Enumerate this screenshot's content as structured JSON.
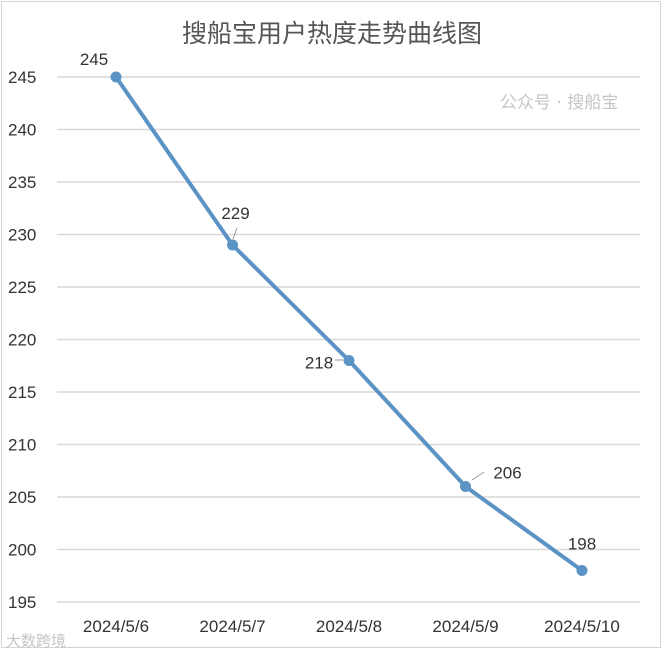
{
  "chart_data": {
    "type": "line",
    "title": "搜船宝用户热度走势曲线图",
    "categories": [
      "2024/5/6",
      "2024/5/7",
      "2024/5/8",
      "2024/5/9",
      "2024/5/10"
    ],
    "series": [
      {
        "values": [
          245,
          229,
          218,
          206,
          198
        ],
        "color": "#5b93c4"
      }
    ],
    "data_labels": [
      "245",
      "229",
      "218",
      "206",
      "198"
    ],
    "ylim": [
      195,
      245
    ],
    "yticks": [
      "195",
      "200",
      "205",
      "210",
      "215",
      "220",
      "225",
      "230",
      "235",
      "240",
      "245"
    ],
    "grid": true,
    "legend": "none"
  },
  "watermarks": {
    "left": "大数跨境",
    "right": "公众号 · 搜船宝"
  }
}
